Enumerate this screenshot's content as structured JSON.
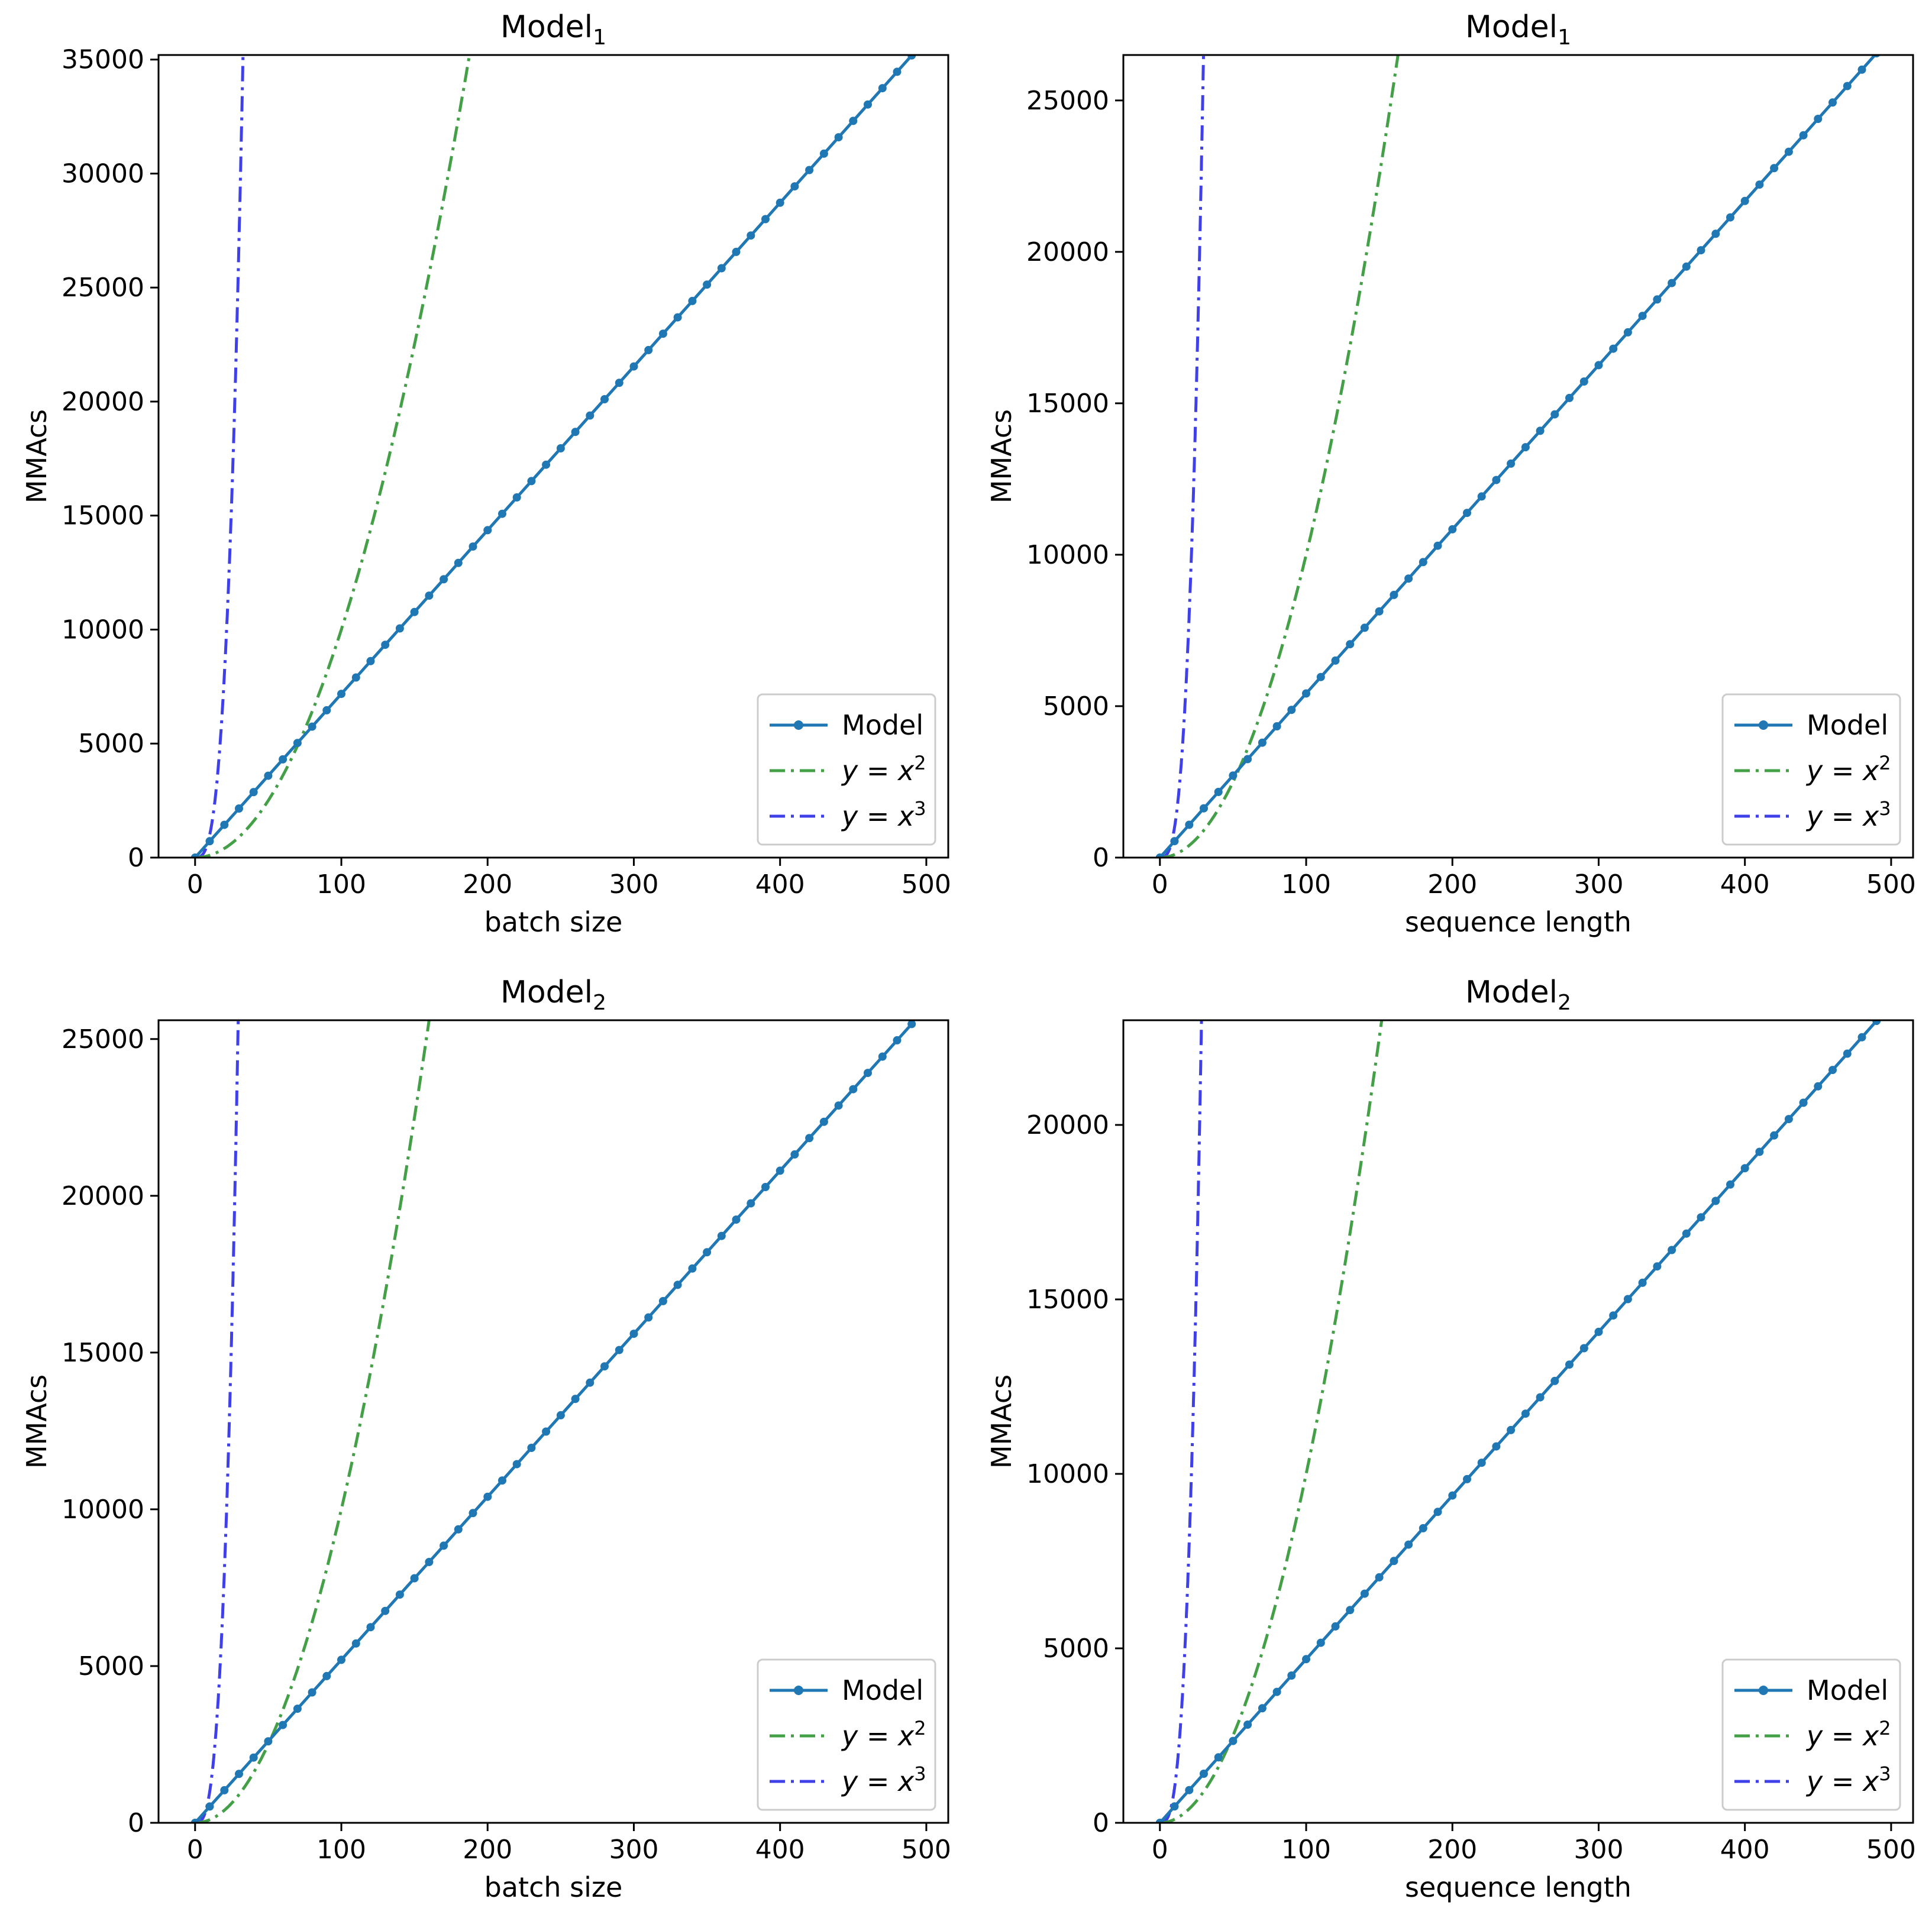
{
  "series_style": {
    "model": {
      "color": "#1f77b4",
      "dash": "solid",
      "marker": "circle"
    },
    "square": {
      "color": "#43a047",
      "dash": "dashdot"
    },
    "cube": {
      "color": "#4040e8",
      "dash": "dashdot"
    }
  },
  "chart_data": [
    {
      "type": "line",
      "title": "Model",
      "title_subscript": "1",
      "xlabel": "batch size",
      "ylabel": "MMAcs",
      "xlim": [
        -25,
        515
      ],
      "ylim": [
        0,
        35200
      ],
      "xticks": [
        0,
        100,
        200,
        300,
        400,
        500
      ],
      "yticks": [
        0,
        5000,
        10000,
        15000,
        20000,
        25000,
        30000,
        35000
      ],
      "legend": {
        "position": "lower-right",
        "entries": [
          {
            "key": "model",
            "label": "Model"
          },
          {
            "key": "square",
            "label_prefix": "y = x",
            "label_exp": "2"
          },
          {
            "key": "cube",
            "label_prefix": "y = x",
            "label_exp": "3"
          }
        ]
      },
      "series": [
        {
          "name": "Model",
          "key": "model",
          "x_start": 0,
          "x_end": 495,
          "x_step": 10,
          "y_at_x0": 0,
          "slope": 71.8
        },
        {
          "name": "y = x^2",
          "key": "square",
          "power": 2
        },
        {
          "name": "y = x^3",
          "key": "cube",
          "power": 3
        }
      ]
    },
    {
      "type": "line",
      "title": "Model",
      "title_subscript": "1",
      "xlabel": "sequence length",
      "ylabel": "MMAcs",
      "xlim": [
        -25,
        515
      ],
      "ylim": [
        0,
        26500
      ],
      "xticks": [
        0,
        100,
        200,
        300,
        400,
        500
      ],
      "yticks": [
        0,
        5000,
        10000,
        15000,
        20000,
        25000
      ],
      "legend": {
        "position": "lower-right",
        "entries": [
          {
            "key": "model",
            "label": "Model"
          },
          {
            "key": "square",
            "label_prefix": "y = x",
            "label_exp": "2"
          },
          {
            "key": "cube",
            "label_prefix": "y = x",
            "label_exp": "3"
          }
        ]
      },
      "series": [
        {
          "name": "Model",
          "key": "model",
          "x_start": 0,
          "x_end": 495,
          "x_step": 10,
          "y_at_x0": 0,
          "slope": 54.2
        },
        {
          "name": "y = x^2",
          "key": "square",
          "power": 2
        },
        {
          "name": "y = x^3",
          "key": "cube",
          "power": 3
        }
      ]
    },
    {
      "type": "line",
      "title": "Model",
      "title_subscript": "2",
      "xlabel": "batch size",
      "ylabel": "MMAcs",
      "xlim": [
        -25,
        515
      ],
      "ylim": [
        0,
        25600
      ],
      "xticks": [
        0,
        100,
        200,
        300,
        400,
        500
      ],
      "yticks": [
        0,
        5000,
        10000,
        15000,
        20000,
        25000
      ],
      "legend": {
        "position": "lower-right",
        "entries": [
          {
            "key": "model",
            "label": "Model"
          },
          {
            "key": "square",
            "label_prefix": "y = x",
            "label_exp": "2"
          },
          {
            "key": "cube",
            "label_prefix": "y = x",
            "label_exp": "3"
          }
        ]
      },
      "series": [
        {
          "name": "Model",
          "key": "model",
          "x_start": 0,
          "x_end": 495,
          "x_step": 10,
          "y_at_x0": 0,
          "slope": 52.0
        },
        {
          "name": "y = x^2",
          "key": "square",
          "power": 2
        },
        {
          "name": "y = x^3",
          "key": "cube",
          "power": 3
        }
      ]
    },
    {
      "type": "line",
      "title": "Model",
      "title_subscript": "2",
      "xlabel": "sequence length",
      "ylabel": "MMAcs",
      "xlim": [
        -25,
        515
      ],
      "ylim": [
        0,
        23000
      ],
      "xticks": [
        0,
        100,
        200,
        300,
        400,
        500
      ],
      "yticks": [
        0,
        5000,
        10000,
        15000,
        20000
      ],
      "legend": {
        "position": "lower-right",
        "entries": [
          {
            "key": "model",
            "label": "Model"
          },
          {
            "key": "square",
            "label_prefix": "y = x",
            "label_exp": "2"
          },
          {
            "key": "cube",
            "label_prefix": "y = x",
            "label_exp": "3"
          }
        ]
      },
      "series": [
        {
          "name": "Model",
          "key": "model",
          "x_start": 0,
          "x_end": 495,
          "x_step": 10,
          "y_at_x0": 0,
          "slope": 46.9
        },
        {
          "name": "y = x^2",
          "key": "square",
          "power": 2
        },
        {
          "name": "y = x^3",
          "key": "cube",
          "power": 3
        }
      ]
    }
  ]
}
